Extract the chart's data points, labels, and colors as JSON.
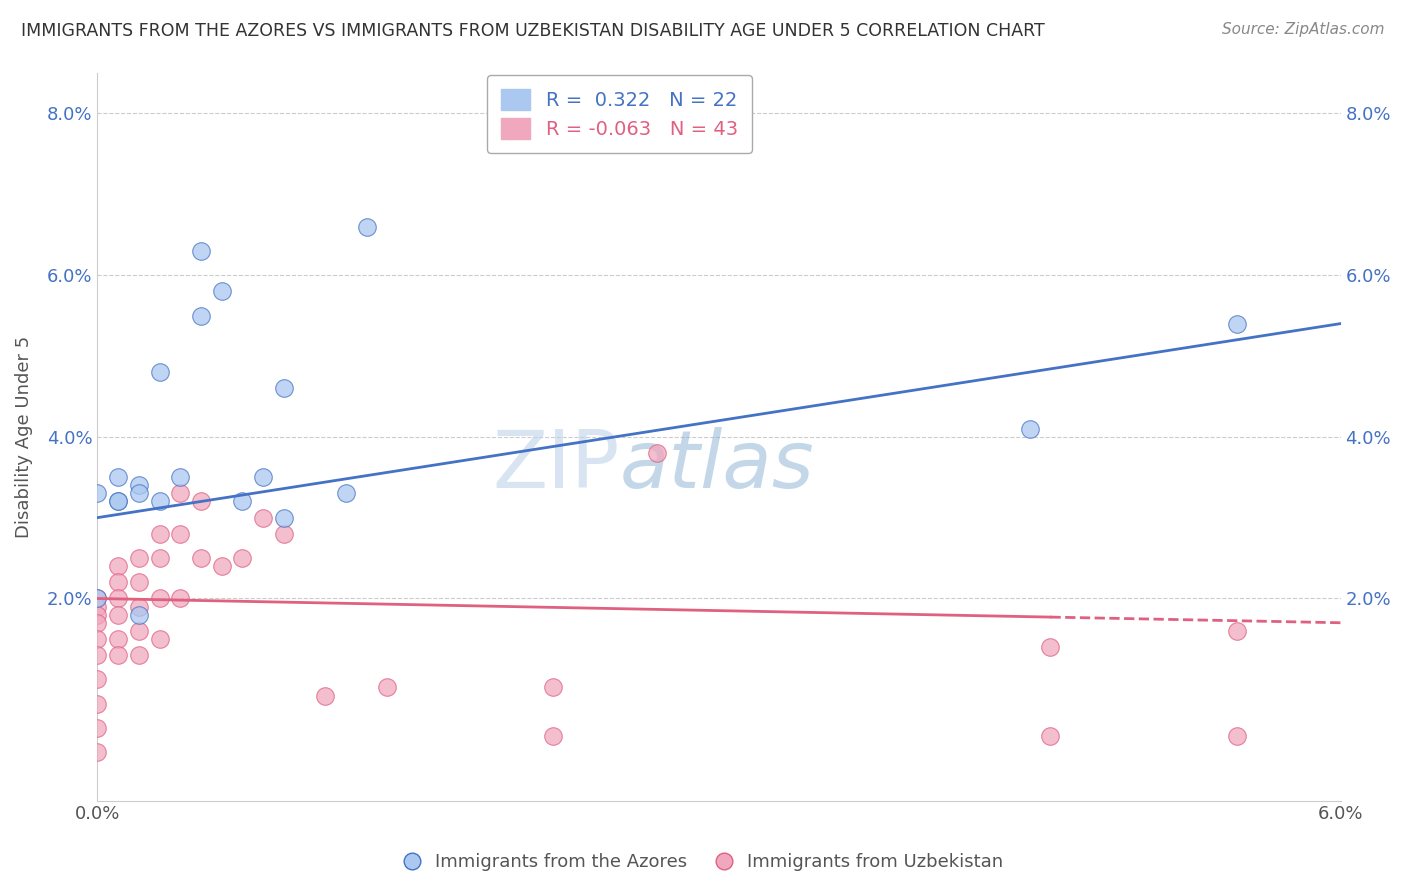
{
  "title": "IMMIGRANTS FROM THE AZORES VS IMMIGRANTS FROM UZBEKISTAN DISABILITY AGE UNDER 5 CORRELATION CHART",
  "source": "Source: ZipAtlas.com",
  "ylabel": "Disability Age Under 5",
  "xlim": [
    0.0,
    0.06
  ],
  "ylim": [
    -0.005,
    0.085
  ],
  "yticks": [
    0.02,
    0.04,
    0.06,
    0.08
  ],
  "ytick_labels": [
    "2.0%",
    "4.0%",
    "6.0%",
    "8.0%"
  ],
  "xticks": [
    0.0,
    0.01,
    0.02,
    0.03,
    0.04,
    0.05,
    0.06
  ],
  "xtick_labels": [
    "0.0%",
    "",
    "",
    "",
    "",
    "",
    "6.0%"
  ],
  "azores_R": 0.322,
  "azores_N": 22,
  "uzbekistan_R": -0.063,
  "uzbekistan_N": 43,
  "azores_color": "#aac8f0",
  "uzbekistan_color": "#f0a8be",
  "azores_line_color": "#4472c4",
  "uzbekistan_line_color": "#e06080",
  "watermark_part1": "ZIP",
  "watermark_part2": "atlas",
  "azores_x": [
    0.0,
    0.0,
    0.001,
    0.001,
    0.002,
    0.002,
    0.003,
    0.004,
    0.005,
    0.005,
    0.007,
    0.008,
    0.009,
    0.013,
    0.045,
    0.055,
    0.001,
    0.003,
    0.006,
    0.012,
    0.009,
    0.002
  ],
  "azores_y": [
    0.033,
    0.02,
    0.035,
    0.032,
    0.034,
    0.018,
    0.048,
    0.035,
    0.063,
    0.055,
    0.032,
    0.035,
    0.046,
    0.066,
    0.041,
    0.054,
    0.032,
    0.032,
    0.058,
    0.033,
    0.03,
    0.033
  ],
  "uzbekistan_x": [
    0.0,
    0.0,
    0.0,
    0.0,
    0.0,
    0.0,
    0.0,
    0.0,
    0.0,
    0.0,
    0.001,
    0.001,
    0.001,
    0.001,
    0.001,
    0.001,
    0.002,
    0.002,
    0.002,
    0.002,
    0.002,
    0.003,
    0.003,
    0.003,
    0.003,
    0.004,
    0.004,
    0.004,
    0.005,
    0.005,
    0.006,
    0.007,
    0.008,
    0.009,
    0.011,
    0.014,
    0.022,
    0.022,
    0.027,
    0.046,
    0.046,
    0.055,
    0.055
  ],
  "uzbekistan_y": [
    0.02,
    0.019,
    0.018,
    0.017,
    0.015,
    0.013,
    0.01,
    0.007,
    0.004,
    0.001,
    0.024,
    0.022,
    0.02,
    0.018,
    0.015,
    0.013,
    0.025,
    0.022,
    0.019,
    0.016,
    0.013,
    0.028,
    0.025,
    0.02,
    0.015,
    0.033,
    0.028,
    0.02,
    0.032,
    0.025,
    0.024,
    0.025,
    0.03,
    0.028,
    0.008,
    0.009,
    0.009,
    0.003,
    0.038,
    0.014,
    0.003,
    0.016,
    0.003
  ],
  "legend_label_azores": "Immigrants from the Azores",
  "legend_label_uzbekistan": "Immigrants from Uzbekistan",
  "background_color": "#ffffff",
  "grid_color": "#cccccc"
}
